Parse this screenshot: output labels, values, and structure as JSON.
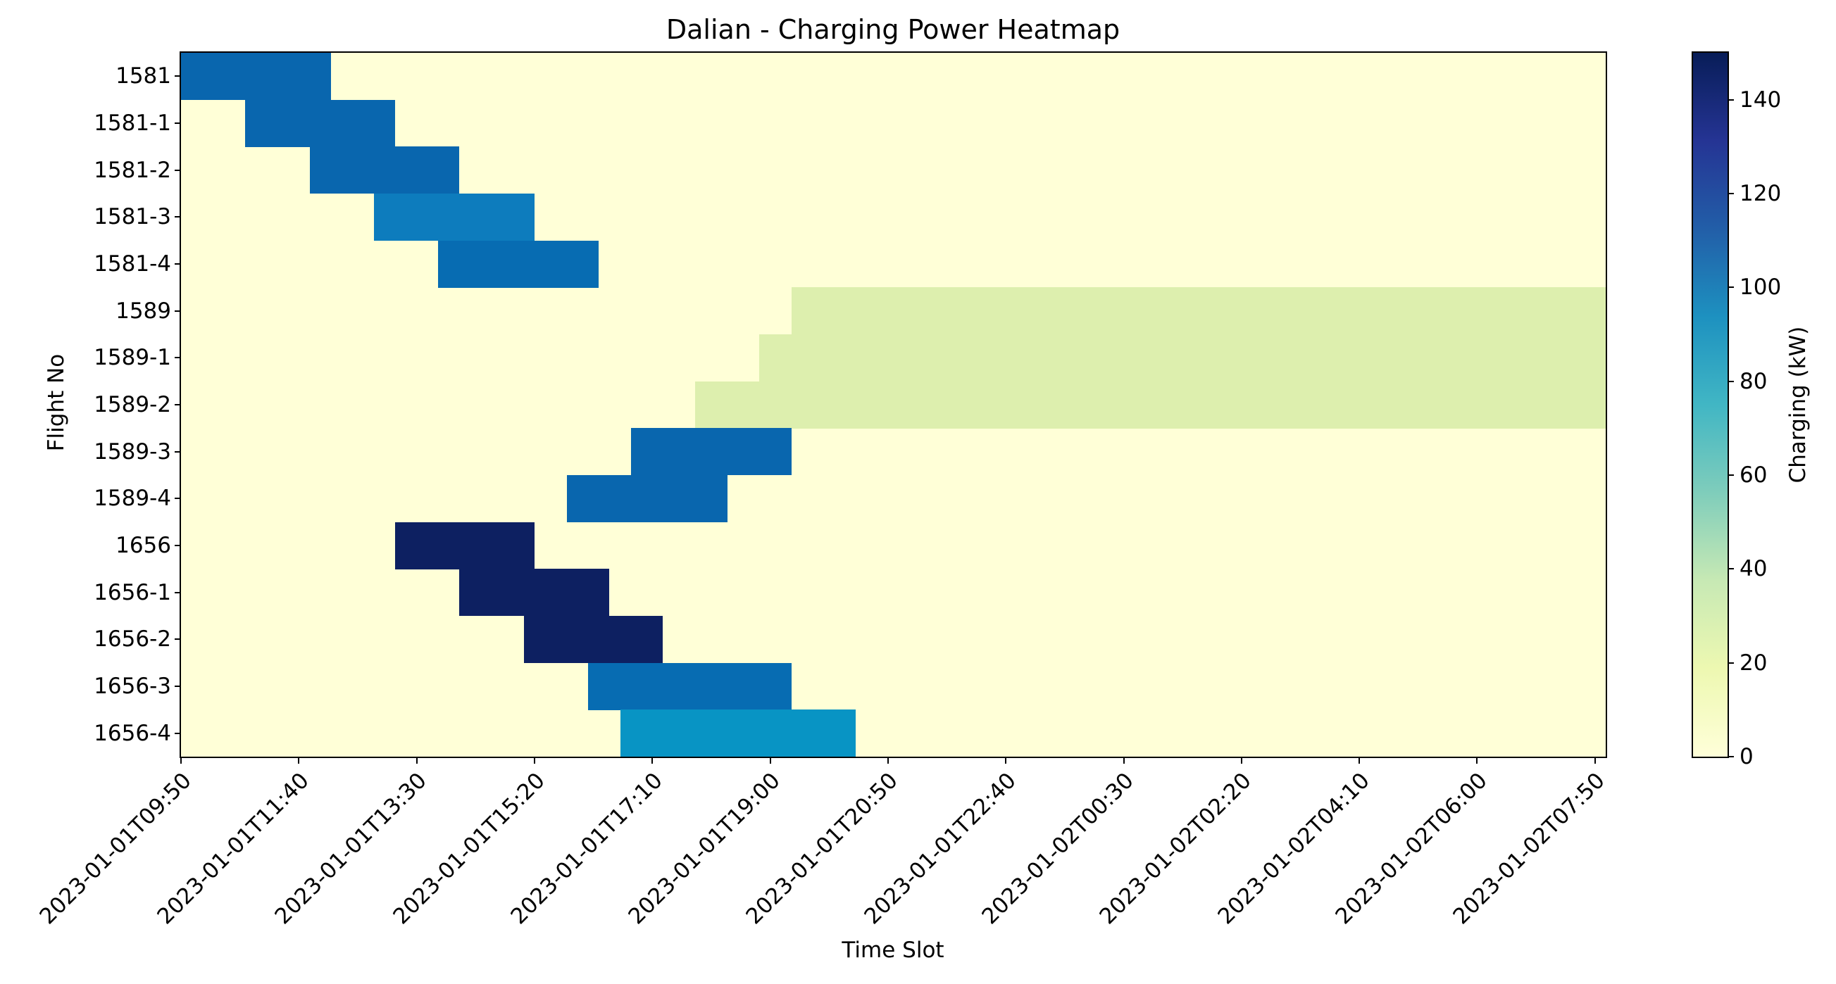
{
  "chart_data": {
    "type": "heatmap",
    "title": "Dalian - Charging Power Heatmap",
    "xlabel": "Time Slot",
    "ylabel": "Flight No",
    "colormap": "YlGnBu",
    "background_color": "#ffffd7",
    "background_value_kw": 0,
    "rows": [
      "1581",
      "1581-1",
      "1581-2",
      "1581-3",
      "1581-4",
      "1589",
      "1589-1",
      "1589-2",
      "1589-3",
      "1589-4",
      "1656",
      "1656-1",
      "1656-2",
      "1656-3",
      "1656-4"
    ],
    "slot": {
      "start": "2023-01-01T09:50",
      "end": "2023-01-02T08:00",
      "minutes_per_slot": 10,
      "num_slots": 133,
      "ticks_every_slots": 11
    },
    "x_tick_labels": [
      "2023-01-01T09:50",
      "2023-01-01T11:40",
      "2023-01-01T13:30",
      "2023-01-01T15:20",
      "2023-01-01T17:10",
      "2023-01-01T19:00",
      "2023-01-01T20:50",
      "2023-01-01T22:40",
      "2023-01-02T00:30",
      "2023-01-02T02:20",
      "2023-01-02T04:10",
      "2023-01-02T06:00",
      "2023-01-02T07:50"
    ],
    "colorbar": {
      "label": "Charging (kW)",
      "ticks": [
        0,
        20,
        40,
        60,
        80,
        100,
        120,
        140
      ],
      "vmin": 0,
      "vmax": 150,
      "colormap": "YlGnBu",
      "gradient_stops": [
        "#ffffd9",
        "#edf8b1",
        "#c7e9b4",
        "#7fcdbb",
        "#41b6c4",
        "#1d91c0",
        "#225ea8",
        "#253494",
        "#081d58"
      ]
    },
    "charging_blocks": [
      {
        "flight": "1581",
        "row": 0,
        "start": "2023-01-01T09:50",
        "end": "2023-01-01T12:10",
        "power_kw": 112,
        "color": "#0966ae"
      },
      {
        "flight": "1581-1",
        "row": 1,
        "start": "2023-01-01T10:50",
        "end": "2023-01-01T13:10",
        "power_kw": 112,
        "color": "#0966ae"
      },
      {
        "flight": "1581-2",
        "row": 2,
        "start": "2023-01-01T11:50",
        "end": "2023-01-01T14:10",
        "power_kw": 112,
        "color": "#0966ae"
      },
      {
        "flight": "1581-3",
        "row": 3,
        "start": "2023-01-01T12:50",
        "end": "2023-01-01T15:20",
        "power_kw": 98,
        "color": "#0d7cbd"
      },
      {
        "flight": "1581-4",
        "row": 4,
        "start": "2023-01-01T13:50",
        "end": "2023-01-01T16:20",
        "power_kw": 107,
        "color": "#076cb2"
      },
      {
        "flight": "1589",
        "row": 5,
        "start": "2023-01-01T19:20",
        "end": "2023-01-02T08:00",
        "power_kw": 25,
        "color": "#ddefae"
      },
      {
        "flight": "1589-1",
        "row": 6,
        "start": "2023-01-01T18:50",
        "end": "2023-01-02T08:00",
        "power_kw": 25,
        "color": "#ddefae"
      },
      {
        "flight": "1589-2",
        "row": 7,
        "start": "2023-01-01T17:50",
        "end": "2023-01-02T08:00",
        "power_kw": 25,
        "color": "#ddefae"
      },
      {
        "flight": "1589-3",
        "row": 8,
        "start": "2023-01-01T16:50",
        "end": "2023-01-01T19:20",
        "power_kw": 110,
        "color": "#0966ae"
      },
      {
        "flight": "1589-4",
        "row": 9,
        "start": "2023-01-01T15:50",
        "end": "2023-01-01T18:20",
        "power_kw": 110,
        "color": "#0966ae"
      },
      {
        "flight": "1656",
        "row": 10,
        "start": "2023-01-01T13:10",
        "end": "2023-01-01T15:20",
        "power_kw": 150,
        "color": "#0d2061"
      },
      {
        "flight": "1656-1",
        "row": 11,
        "start": "2023-01-01T14:10",
        "end": "2023-01-01T16:30",
        "power_kw": 150,
        "color": "#0d2061"
      },
      {
        "flight": "1656-2",
        "row": 12,
        "start": "2023-01-01T15:10",
        "end": "2023-01-01T17:20",
        "power_kw": 150,
        "color": "#0d2061"
      },
      {
        "flight": "1656-3",
        "row": 13,
        "start": "2023-01-01T16:10",
        "end": "2023-01-01T19:20",
        "power_kw": 107,
        "color": "#076cb2"
      },
      {
        "flight": "1656-4",
        "row": 14,
        "start": "2023-01-01T16:40",
        "end": "2023-01-01T20:20",
        "power_kw": 85,
        "color": "#0894c4"
      }
    ]
  }
}
